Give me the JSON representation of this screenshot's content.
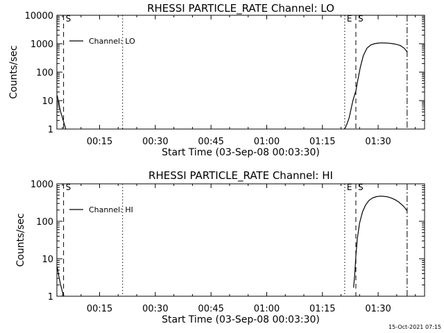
{
  "timestamp": "15-Oct-2021 07:15",
  "chart_data": [
    {
      "type": "line",
      "title": "RHESSI PARTICLE_RATE Channel: LO",
      "xlabel": "Start Time (03-Sep-08 00:03:30)",
      "ylabel": "Counts/sec",
      "yscale": "log",
      "xlim_min": [
        3.5,
        102.5
      ],
      "ylim": [
        1,
        10000
      ],
      "x_ticks": [
        15,
        30,
        45,
        60,
        75,
        90
      ],
      "x_tick_labels": [
        "00:15",
        "00:30",
        "00:45",
        "01:00",
        "01:15",
        "01:30"
      ],
      "y_ticks": [
        1,
        10,
        100,
        1000,
        10000
      ],
      "y_tick_labels": [
        "1",
        "10",
        "100",
        "1000",
        "10000"
      ],
      "legend": "Channel: LO",
      "legend_position": "top-left",
      "markers": [
        {
          "x": 5.3,
          "style": "dashed",
          "label": "S"
        },
        {
          "x": 21.2,
          "style": "dotted",
          "label": ""
        },
        {
          "x": 81.0,
          "style": "dotted",
          "label": "E"
        },
        {
          "x": 84.0,
          "style": "dashed",
          "label": "S"
        },
        {
          "x": 97.8,
          "style": "dashdot",
          "label": ""
        }
      ],
      "series": [
        {
          "name": "Channel: LO",
          "segments": [
            {
              "x": [
                3.6,
                4.0,
                4.5,
                5.0,
                5.5,
                5.9
              ],
              "y": [
                15,
                8,
                4,
                2.5,
                1.5,
                1
              ]
            },
            {
              "x": [
                81.0,
                81.6,
                82.2,
                82.7,
                83.2,
                83.6,
                84.0,
                84.5,
                85.2,
                86.0,
                87.0,
                88.0,
                89.0,
                90.0,
                91.0,
                92.0,
                93.0,
                94.0,
                95.0,
                96.0,
                97.0,
                97.8
              ],
              "y": [
                1,
                1.5,
                2.5,
                5,
                10,
                15,
                22,
                50,
                150,
                380,
                700,
                900,
                1000,
                1050,
                1070,
                1060,
                1040,
                1000,
                940,
                860,
                700,
                520
              ]
            }
          ]
        }
      ]
    },
    {
      "type": "line",
      "title": "RHESSI PARTICLE_RATE Channel: HI",
      "xlabel": "Start Time (03-Sep-08 00:03:30)",
      "ylabel": "Counts/sec",
      "yscale": "log",
      "xlim_min": [
        3.5,
        102.5
      ],
      "ylim": [
        1,
        1000
      ],
      "x_ticks": [
        15,
        30,
        45,
        60,
        75,
        90
      ],
      "x_tick_labels": [
        "00:15",
        "00:30",
        "00:45",
        "01:00",
        "01:15",
        "01:30"
      ],
      "y_ticks": [
        1,
        10,
        100,
        1000
      ],
      "y_tick_labels": [
        "1",
        "10",
        "100",
        "1000"
      ],
      "legend": "Channel: HI",
      "legend_position": "top-left",
      "markers": [
        {
          "x": 5.3,
          "style": "dashed",
          "label": "S"
        },
        {
          "x": 21.2,
          "style": "dotted",
          "label": ""
        },
        {
          "x": 81.0,
          "style": "dotted",
          "label": "E"
        },
        {
          "x": 84.0,
          "style": "dashed",
          "label": "S"
        },
        {
          "x": 97.8,
          "style": "dashdot",
          "label": ""
        }
      ],
      "series": [
        {
          "name": "Channel: HI",
          "segments": [
            {
              "x": [
                3.6,
                4.0,
                4.5,
                5.0,
                5.4
              ],
              "y": [
                6,
                3.5,
                2,
                1.3,
                1
              ]
            },
            {
              "x": [
                83.4,
                83.7,
                84.0,
                84.4,
                85.0,
                85.8,
                86.6,
                87.5,
                88.5,
                89.5,
                90.5,
                91.5,
                92.5,
                93.5,
                94.5,
                95.5,
                96.5,
                97.2,
                97.8
              ],
              "y": [
                1.7,
                4,
                12,
                35,
                90,
                180,
                270,
                360,
                420,
                455,
                470,
                465,
                450,
                420,
                380,
                330,
                270,
                230,
                190
              ]
            }
          ]
        }
      ]
    }
  ]
}
